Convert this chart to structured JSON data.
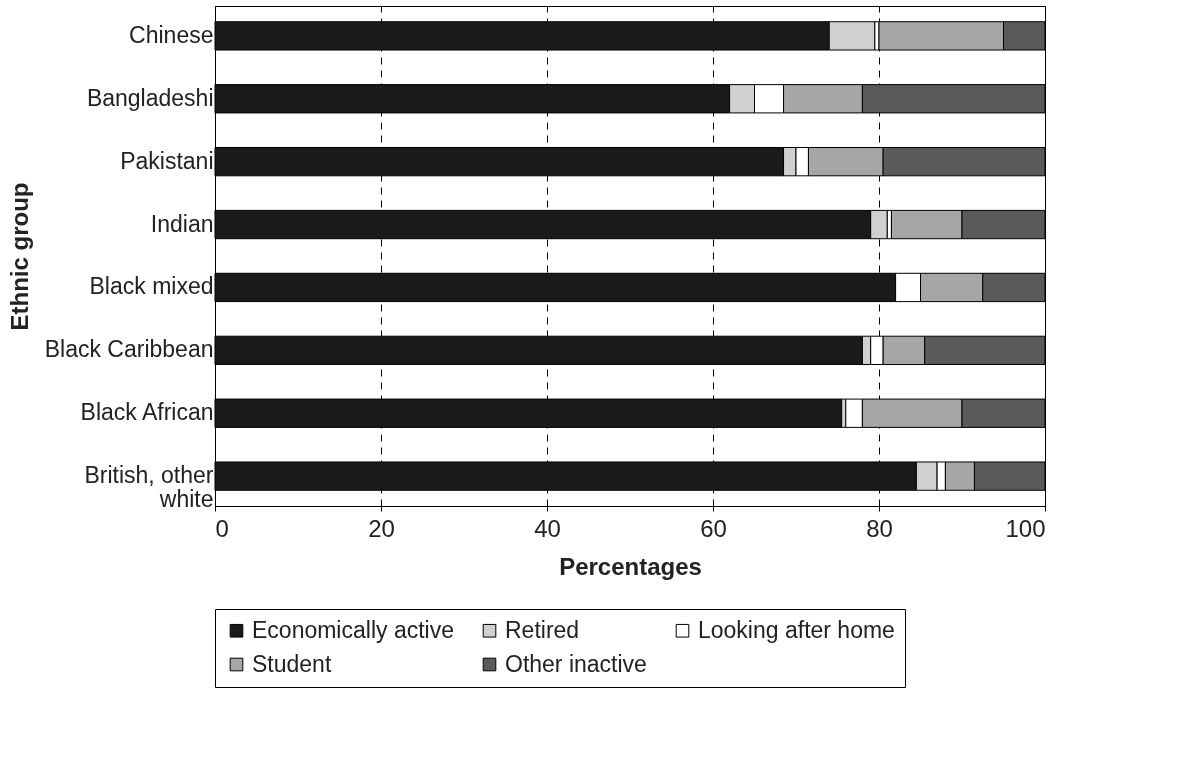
{
  "chart_data": {
    "type": "bar",
    "orientation": "horizontal",
    "stacked": true,
    "xlabel": "Percentages",
    "ylabel": "Ethnic group",
    "categories": [
      "Chinese",
      "Bangladeshi",
      "Pakistani",
      "Indian",
      "Black mixed",
      "Black Caribbean",
      "Black African",
      "British, other white"
    ],
    "series": [
      {
        "name": "Economically active",
        "color": "#1a1a1a",
        "values": [
          74,
          62,
          68.5,
          79,
          82,
          78,
          75.5,
          84.5
        ]
      },
      {
        "name": "Retired",
        "color": "#d0d0d0",
        "values": [
          5.5,
          3,
          1.5,
          2,
          0,
          1,
          0.5,
          2.5
        ]
      },
      {
        "name": "Looking after home",
        "color": "#ffffff",
        "values": [
          0.5,
          3.5,
          1.5,
          0.5,
          3,
          1.5,
          2,
          1
        ]
      },
      {
        "name": "Student",
        "color": "#a6a6a6",
        "values": [
          15,
          9.5,
          9,
          8.5,
          7.5,
          5,
          12,
          3.5
        ]
      },
      {
        "name": "Other inactive",
        "color": "#5a5a5a",
        "values": [
          5,
          22,
          19.5,
          10,
          7.5,
          14.5,
          10,
          8.5
        ]
      }
    ],
    "xlim": [
      0,
      100
    ],
    "xticks": [
      0,
      20,
      40,
      60,
      80,
      100
    ],
    "grid": "x",
    "legend": "bottom"
  }
}
